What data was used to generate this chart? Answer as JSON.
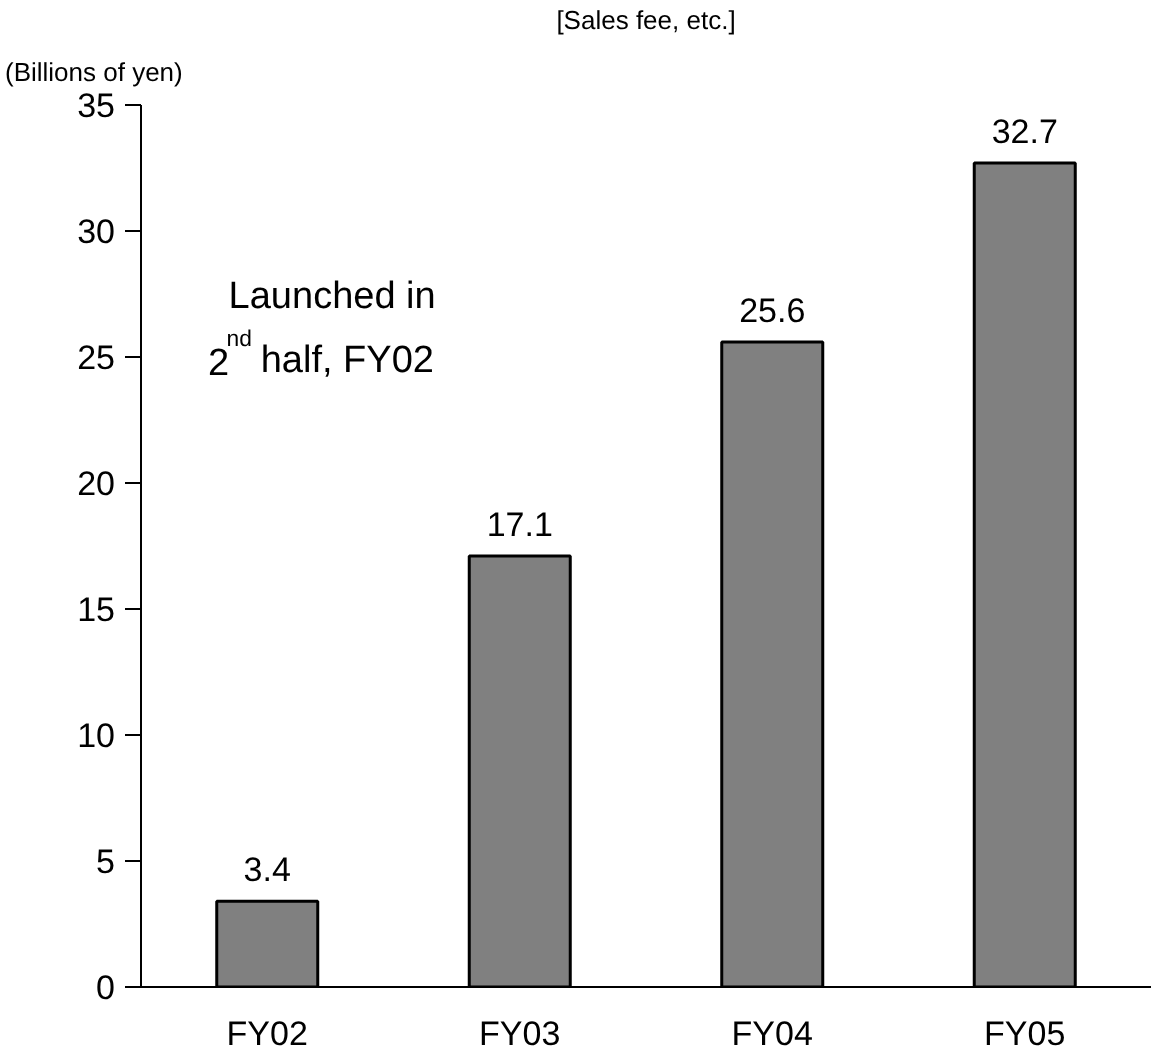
{
  "chart_data": {
    "type": "bar",
    "title": "[Sales fee, etc.]",
    "ylabel": "(Billions of yen)",
    "categories": [
      "FY02",
      "FY03",
      "FY04",
      "FY05"
    ],
    "values": [
      3.4,
      17.1,
      25.6,
      32.7
    ],
    "color": "#808080",
    "ylim": [
      0,
      35
    ],
    "yticks": [
      0,
      5,
      10,
      15,
      20,
      25,
      30,
      35
    ],
    "grid": false,
    "data_labels": true,
    "annotations": [
      "Launched in\n2$^{nd}$ half, FY02"
    ]
  }
}
